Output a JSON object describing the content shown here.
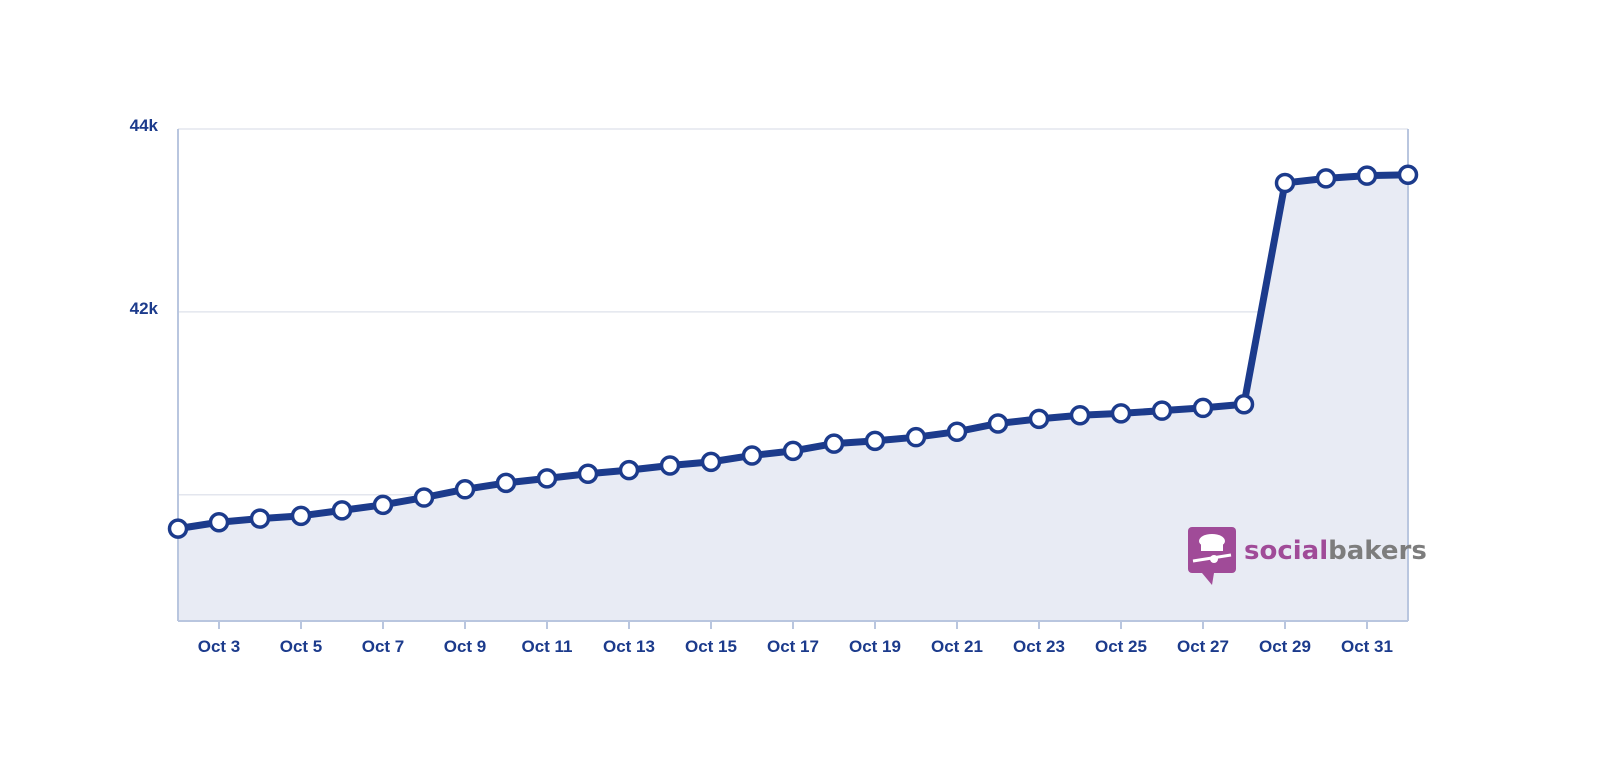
{
  "chart_data": {
    "type": "area",
    "x": [
      "Oct 2",
      "Oct 3",
      "Oct 4",
      "Oct 5",
      "Oct 6",
      "Oct 7",
      "Oct 8",
      "Oct 9",
      "Oct 10",
      "Oct 11",
      "Oct 12",
      "Oct 13",
      "Oct 14",
      "Oct 15",
      "Oct 16",
      "Oct 17",
      "Oct 18",
      "Oct 19",
      "Oct 20",
      "Oct 21",
      "Oct 22",
      "Oct 23",
      "Oct 24",
      "Oct 25",
      "Oct 26",
      "Oct 27",
      "Oct 28",
      "Oct 29",
      "Oct 30",
      "Oct 31",
      "Nov 1"
    ],
    "series": [
      {
        "values": [
          39630,
          39700,
          39740,
          39770,
          39830,
          39890,
          39970,
          40060,
          40130,
          40180,
          40230,
          40270,
          40320,
          40360,
          40430,
          40480,
          40560,
          40590,
          40630,
          40690,
          40780,
          40830,
          40870,
          40890,
          40920,
          40950,
          40990,
          43410,
          43460,
          43490,
          43500
        ]
      }
    ],
    "x_tick_labels": [
      "Oct 3",
      "Oct 5",
      "Oct 7",
      "Oct 9",
      "Oct 11",
      "Oct 13",
      "Oct 15",
      "Oct 17",
      "Oct 19",
      "Oct 21",
      "Oct 23",
      "Oct 25",
      "Oct 27",
      "Oct 29",
      "Oct 31"
    ],
    "y_ticks": [
      {
        "value": 44000,
        "label": "44k"
      },
      {
        "value": 42000,
        "label": "42k"
      },
      {
        "value": 40000,
        "label": ""
      }
    ],
    "ylim": [
      38620,
      44000
    ],
    "grid": true,
    "colors": {
      "line": "#1c3b8c",
      "fill": "#e8ebf4",
      "grid": "#e3e6ee",
      "axis": "#b9c6df",
      "marker_fill": "#ffffff"
    }
  },
  "watermark": {
    "part1": "social",
    "part2": "bakers",
    "color1": "#a04b98",
    "color2": "#7d7d7d"
  }
}
